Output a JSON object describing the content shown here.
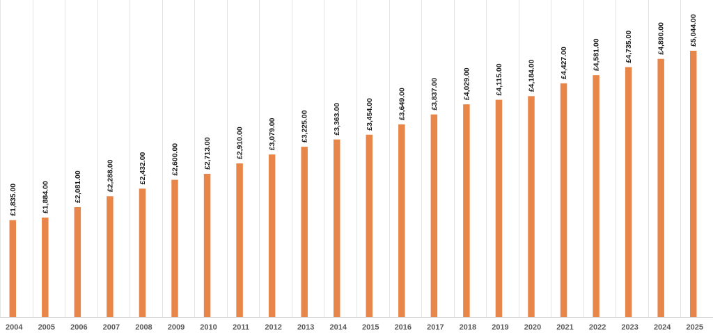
{
  "chart_data": {
    "type": "bar",
    "title": "",
    "xlabel": "",
    "ylabel": "",
    "categories": [
      "2004",
      "2005",
      "2006",
      "2007",
      "2008",
      "2009",
      "2010",
      "2011",
      "2012",
      "2013",
      "2014",
      "2015",
      "2016",
      "2017",
      "2018",
      "2019",
      "2020",
      "2021",
      "2022",
      "2023",
      "2024",
      "2025"
    ],
    "values": [
      1835,
      1884,
      2081,
      2288,
      2432,
      2600,
      2713,
      2910,
      3079,
      3225,
      3363,
      3454,
      3649,
      3837,
      4029,
      4115,
      4184,
      4427,
      4581,
      4735,
      4890,
      5044
    ],
    "data_labels": [
      "£1,835.00",
      "£1,884.00",
      "£2,081.00",
      "£2,288.00",
      "£2,432.00",
      "£2,600.00",
      "£2,713.00",
      "£2,910.00",
      "£3,079.00",
      "£3,225.00",
      "£3,363.00",
      "£3,454.00",
      "£3,649.00",
      "£3,837.00",
      "£4,029.00",
      "£4,115.00",
      "£4,184.00",
      "£4,427.00",
      "£4,581.00",
      "£4,735.00",
      "£4,890.00",
      "£5,044.00"
    ],
    "ylim": [
      0,
      5500
    ],
    "grid": "vertical-category-separators",
    "legend": "none",
    "colors": {
      "bar": "#E8864A",
      "grid": "#e3e3e3",
      "baseline": "#d0d0d0",
      "category_text": "#595959",
      "label_text": "#1a1a1a"
    }
  }
}
